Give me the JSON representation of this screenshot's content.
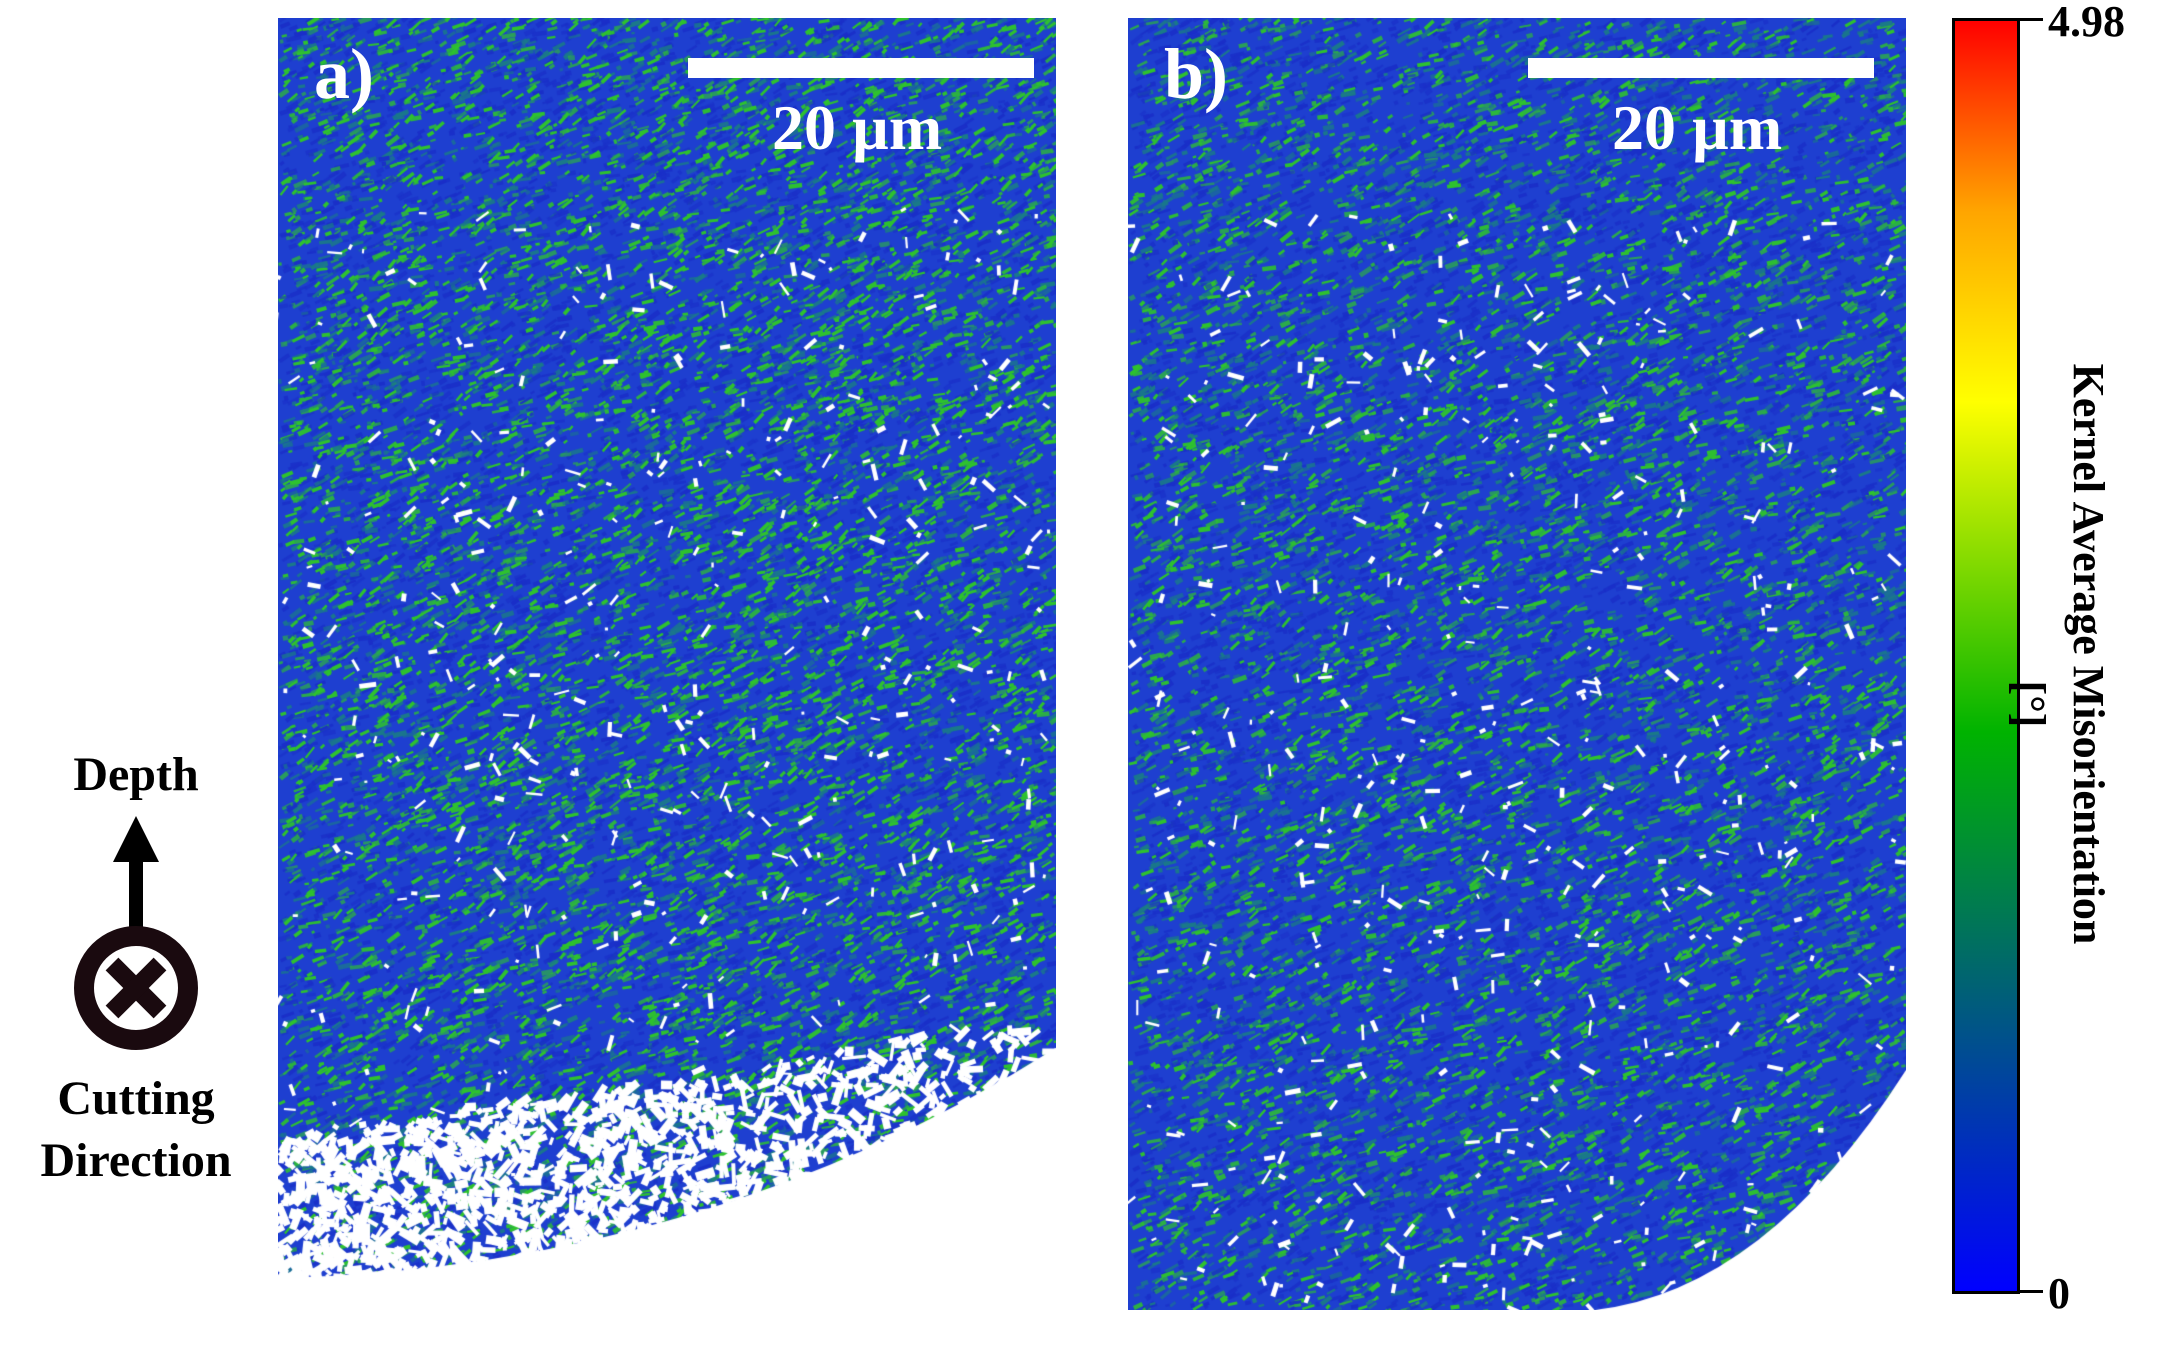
{
  "panels": [
    {
      "label": "a)",
      "scale_bar": "20 µm"
    },
    {
      "label": "b)",
      "scale_bar": "20 µm"
    }
  ],
  "orientation_key": {
    "depth_label": "Depth",
    "cutting_label": "Cutting Direction",
    "arrow_icon": "arrow-up-icon",
    "into_page_icon": "circle-x-icon"
  },
  "colorbar": {
    "max": "4.98",
    "min": "0",
    "title": "Kernel Average Misorientation",
    "unit": "[°]",
    "colors": [
      "#0000ff",
      "#00b300",
      "#ffff00",
      "#ffa500",
      "#ff0000"
    ]
  },
  "map_colors": {
    "background": "#1e3fd0",
    "deep_blue": "#1a2fc8",
    "teal": "#1a7a88",
    "green": "#2ec22e"
  }
}
